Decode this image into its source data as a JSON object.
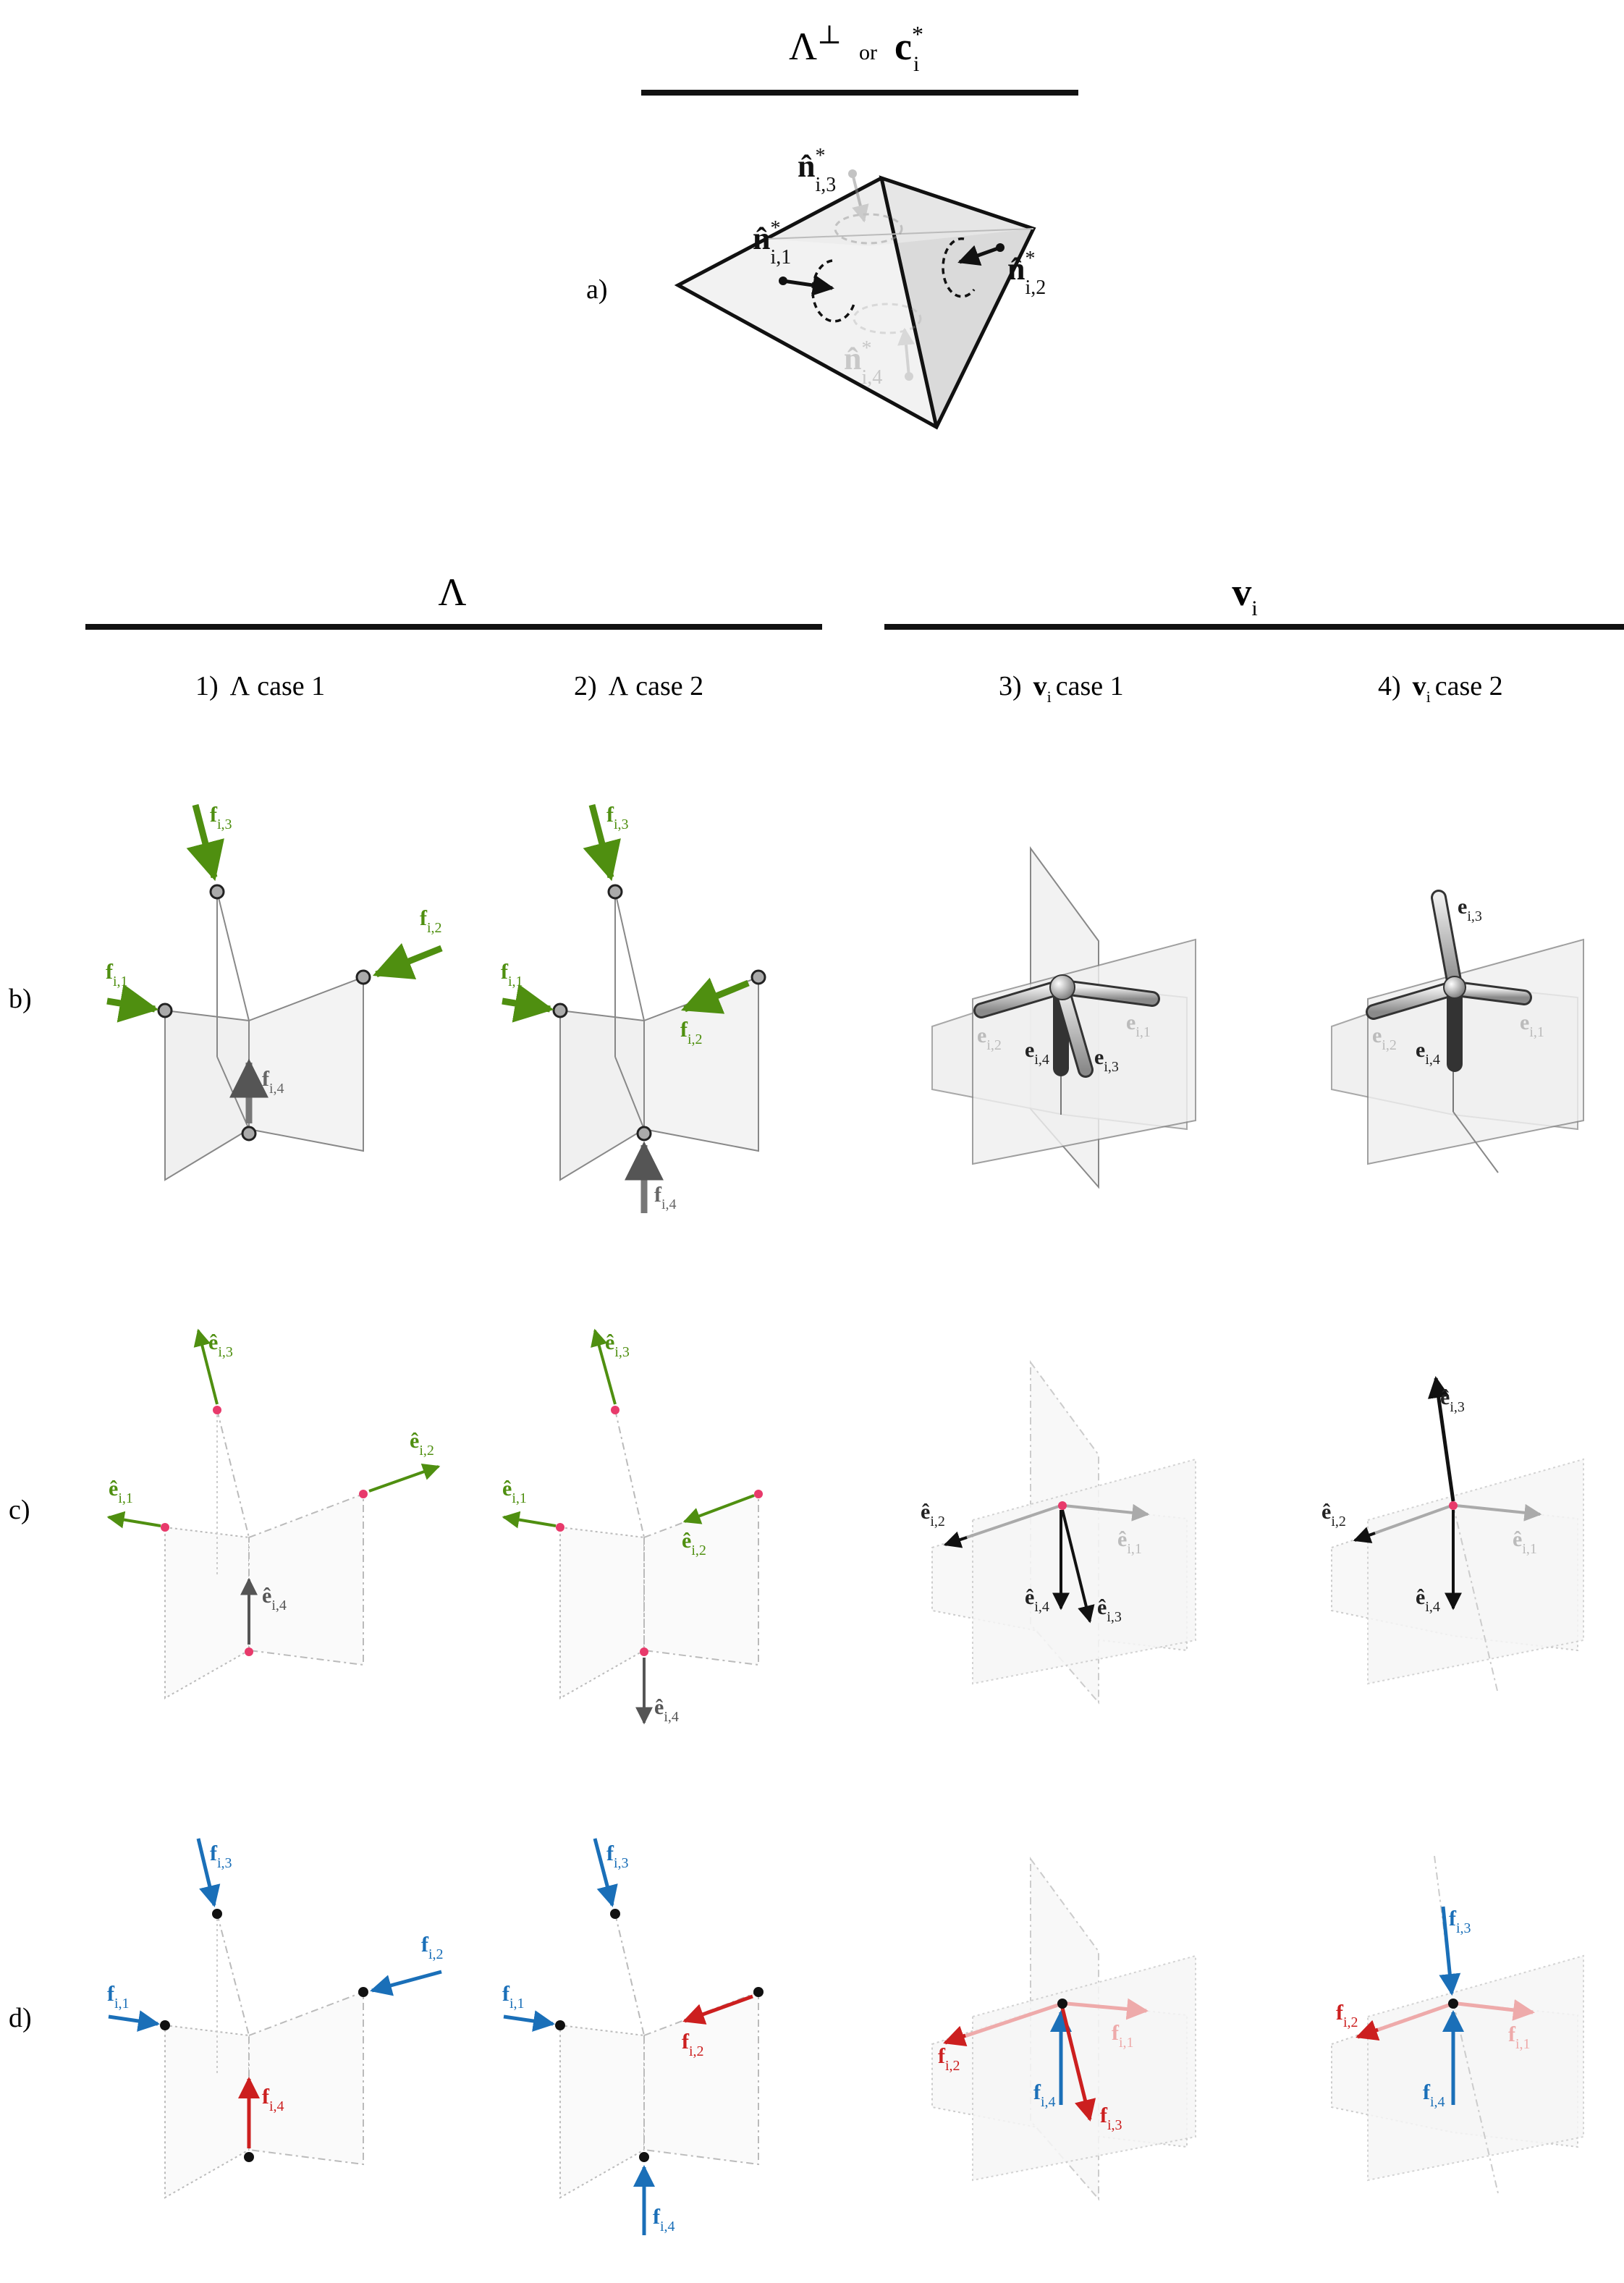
{
  "header_top": {
    "lambda": "Λ",
    "perp": "⊥",
    "or": "or",
    "c": "c",
    "c_sub": "i",
    "c_sup": "*"
  },
  "header_left": {
    "lambda": "Λ"
  },
  "header_right": {
    "v": "v",
    "v_sub": "i"
  },
  "columns": [
    {
      "num": "1)",
      "pre": "Λ",
      "sub": "",
      "post": "case 1"
    },
    {
      "num": "2)",
      "pre": "Λ",
      "sub": "",
      "post": "case 2"
    },
    {
      "num": "3)",
      "pre": "v",
      "sub": "i",
      "post": "case 1"
    },
    {
      "num": "4)",
      "pre": "v",
      "sub": "i",
      "post": "case 2"
    }
  ],
  "row_labels": {
    "a": "a)",
    "b": "b)",
    "c": "c)",
    "d": "d)"
  },
  "symbols": {
    "n_hat": "n̂",
    "e_hat": "ê",
    "e": "e",
    "f": "f",
    "star": "*",
    "sub_1": "i,1",
    "sub_2": "i,2",
    "sub_3": "i,3",
    "sub_4": "i,4"
  },
  "colors": {
    "black": "#111111",
    "green": "#4f8f10",
    "blue": "#1a6fb8",
    "red": "#cc1f1f",
    "pink": "#e83a6b",
    "light_red": "#eeaaaa",
    "gray_text": "#9a9a9a",
    "plane_fill": "#f0f0f0"
  }
}
